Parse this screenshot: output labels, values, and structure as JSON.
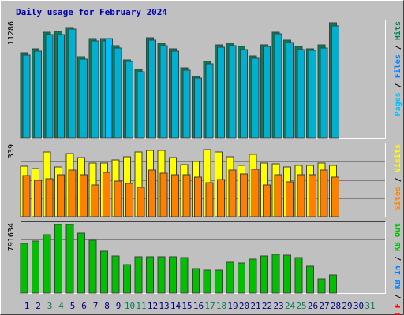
{
  "chart_data": [
    {
      "type": "bar",
      "title": "Daily usage for February 2024",
      "ymax_label": "11286",
      "ylim": [
        0,
        11286
      ],
      "x": [
        "1",
        "2",
        "3",
        "4",
        "5",
        "6",
        "7",
        "8",
        "9",
        "10",
        "11",
        "12",
        "13",
        "14",
        "15",
        "16",
        "17",
        "18",
        "19",
        "20",
        "21",
        "22",
        "23",
        "24",
        "25",
        "26",
        "27",
        "28",
        "29",
        "30",
        "31"
      ],
      "legend": [
        "Pages",
        "Files",
        "Hits"
      ],
      "legend_separator": " / ",
      "series": [
        {
          "name": "Hits",
          "color": "#00805c",
          "values": [
            8310,
            8740,
            10350,
            10430,
            10810,
            7990,
            9710,
            9740,
            9030,
            7650,
            6740,
            9790,
            9250,
            8720,
            6870,
            6020,
            7490,
            9130,
            9260,
            8950,
            8050,
            9160,
            10390,
            9600,
            8970,
            8760,
            9120,
            11286,
            null,
            null,
            null
          ]
        },
        {
          "name": "Files",
          "color": "#00b0d0",
          "values": [
            8130,
            8530,
            10130,
            10130,
            10630,
            7750,
            9530,
            9500,
            8820,
            7500,
            6520,
            9600,
            9030,
            8520,
            6620,
            5840,
            7250,
            8870,
            9030,
            8680,
            7800,
            8960,
            10170,
            9320,
            8680,
            8550,
            8830,
            11000,
            null,
            null,
            null
          ]
        },
        {
          "name": "Pages",
          "color": "#00c0ff",
          "values": [
            null,
            null,
            null,
            null,
            null,
            null,
            null,
            9740,
            null,
            null,
            null,
            null,
            null,
            null,
            null,
            null,
            null,
            null,
            null,
            null,
            null,
            null,
            null,
            null,
            null,
            null,
            null,
            null,
            null,
            null,
            null
          ]
        }
      ]
    },
    {
      "type": "bar",
      "ymax_label": "339",
      "ylim": [
        0,
        339
      ],
      "x": [
        "1",
        "2",
        "3",
        "4",
        "5",
        "6",
        "7",
        "8",
        "9",
        "10",
        "11",
        "12",
        "13",
        "14",
        "15",
        "16",
        "17",
        "18",
        "19",
        "20",
        "21",
        "22",
        "23",
        "24",
        "25",
        "26",
        "27",
        "28",
        "29",
        "30",
        "31"
      ],
      "legend": [
        "Sites",
        "Visits"
      ],
      "legend_separator": " / ",
      "series": [
        {
          "name": "Visits",
          "color": "#ffff00",
          "values": [
            242,
            228,
            310,
            238,
            300,
            282,
            255,
            258,
            272,
            285,
            308,
            318,
            318,
            283,
            248,
            265,
            320,
            310,
            287,
            243,
            298,
            255,
            252,
            238,
            245,
            246,
            255,
            246,
            null,
            null,
            null
          ]
        },
        {
          "name": "Sites",
          "color": "#ff8000",
          "values": [
            195,
            172,
            180,
            200,
            222,
            200,
            152,
            210,
            168,
            157,
            138,
            223,
            208,
            200,
            200,
            190,
            163,
            177,
            223,
            205,
            225,
            150,
            200,
            165,
            200,
            200,
            222,
            190,
            null,
            null,
            null
          ]
        }
      ]
    },
    {
      "type": "bar",
      "ymax_label": "791634",
      "ylim": [
        0,
        791634
      ],
      "x": [
        "1",
        "2",
        "3",
        "4",
        "5",
        "6",
        "7",
        "8",
        "9",
        "10",
        "11",
        "12",
        "13",
        "14",
        "15",
        "16",
        "17",
        "18",
        "19",
        "20",
        "21",
        "22",
        "23",
        "24",
        "25",
        "26",
        "27",
        "28",
        "29",
        "30",
        "31"
      ],
      "legend": [
        "KB F",
        "KB In",
        "KB Out"
      ],
      "legend_separator": " / ",
      "series": [
        {
          "name": "KB F",
          "color": "#ff0000",
          "values": [
            null,
            null,
            null,
            null,
            null,
            null,
            null,
            null,
            null,
            null,
            null,
            null,
            null,
            null,
            null,
            null,
            null,
            null,
            null,
            null,
            null,
            null,
            null,
            null,
            null,
            null,
            null,
            null,
            null,
            null,
            null
          ]
        },
        {
          "name": "KB In",
          "color": "#0080ff",
          "values": [
            null,
            null,
            null,
            null,
            null,
            null,
            null,
            null,
            null,
            null,
            null,
            null,
            null,
            null,
            null,
            null,
            null,
            null,
            null,
            null,
            null,
            null,
            null,
            null,
            null,
            null,
            null,
            null,
            null,
            null,
            null
          ]
        },
        {
          "name": "KB Out",
          "color": "#00c000",
          "values": [
            570640,
            600900,
            672600,
            787500,
            787500,
            689700,
            609600,
            478000,
            426200,
            323400,
            418600,
            418600,
            418600,
            418600,
            409600,
            277700,
            266500,
            266500,
            355900,
            341700,
            387000,
            426200,
            445800,
            436600,
            409600,
            313100,
            166000,
            213600,
            null,
            null,
            null
          ]
        }
      ]
    }
  ],
  "colors": {
    "background": "#c0c0c0",
    "weekend_label": "#00805c",
    "weekday_label": "#000080",
    "title": "#0000b0",
    "bar_shade": "#404040"
  },
  "weekend_days": [
    "3",
    "4",
    "10",
    "11",
    "17",
    "18",
    "24",
    "25",
    "31"
  ]
}
